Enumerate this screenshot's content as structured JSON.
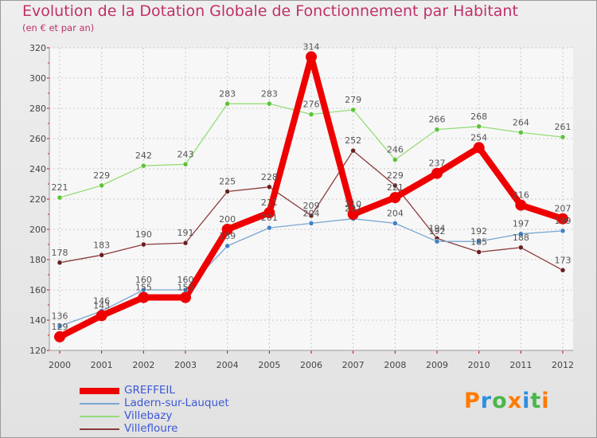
{
  "title": "Evolution de la Dotation Globale de Fonctionnement par Habitant",
  "subtitle": "(en € et par an)",
  "logo": {
    "text": "Proxiti",
    "letters": [
      "P",
      "r",
      "o",
      "x",
      "i",
      "t",
      "i"
    ],
    "colors": [
      "#ff7a00",
      "#2f8fe0",
      "#49b84a",
      "#ff7a00",
      "#2f8fe0",
      "#49b84a",
      "#ff7a00"
    ]
  },
  "chart_data": {
    "type": "line",
    "title": "Evolution de la Dotation Globale de Fonctionnement par Habitant",
    "xlabel": "",
    "ylabel": "",
    "ylim": [
      120,
      320
    ],
    "yticks": [
      120,
      140,
      160,
      180,
      200,
      220,
      240,
      260,
      280,
      300,
      320
    ],
    "x": [
      "2000",
      "2001",
      "2002",
      "2003",
      "2004",
      "2005",
      "2006",
      "2007",
      "2008",
      "2009",
      "2010",
      "2011",
      "2012"
    ],
    "grid": true,
    "legend": "bottom-left",
    "series": [
      {
        "name": "GREFFEIL",
        "color": "#ee0000",
        "width": 8,
        "marker_color": "#ee0000",
        "values": [
          129,
          143,
          155,
          155,
          200,
          211,
          314,
          210,
          221,
          237,
          254,
          216,
          207
        ]
      },
      {
        "name": "Ladern-sur-Lauquet",
        "color": "#7aa6d0",
        "width": 1.3,
        "marker_color": "#3f82c4",
        "values": [
          136,
          146,
          160,
          160,
          189,
          201,
          204,
          207,
          204,
          192,
          192,
          197,
          199
        ]
      },
      {
        "name": "Villebazy",
        "color": "#96dd78",
        "width": 1.3,
        "marker_color": "#5ec23a",
        "values": [
          221,
          229,
          242,
          243,
          283,
          283,
          276,
          279,
          246,
          266,
          268,
          264,
          261
        ]
      },
      {
        "name": "Villefloure",
        "color": "#8b3a3a",
        "width": 1.3,
        "marker_color": "#6b1f1f",
        "values": [
          178,
          183,
          190,
          191,
          225,
          228,
          209,
          252,
          229,
          194,
          185,
          188,
          173
        ]
      }
    ]
  }
}
